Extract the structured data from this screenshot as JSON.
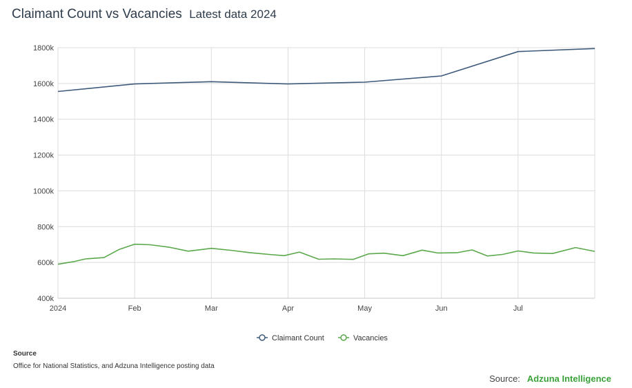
{
  "header": {
    "title": "Claimant Count vs Vacancies",
    "subtitle": "Latest data 2024"
  },
  "chart_data": {
    "type": "line",
    "y_ticks": [
      "400k",
      "600k",
      "800k",
      "1000k",
      "1200k",
      "1400k",
      "1600k",
      "1800k"
    ],
    "ylim": [
      400,
      1800
    ],
    "x_ticks": [
      "2024",
      "Feb",
      "Mar",
      "Apr",
      "May",
      "Jun",
      "Jul"
    ],
    "x_tick_positions": [
      0,
      1,
      2,
      3,
      4,
      5,
      6
    ],
    "xlim": [
      0,
      7
    ],
    "grid": true,
    "legend_position": "bottom-center",
    "series": [
      {
        "name": "Claimant Count",
        "color": "#3d5a7a",
        "x": [
          0,
          1,
          2,
          3,
          4,
          5,
          6,
          7
        ],
        "values": [
          1555,
          1597,
          1610,
          1597,
          1607,
          1642,
          1778,
          1795
        ]
      },
      {
        "name": "Vacancies",
        "color": "#5aa84a",
        "x": [
          0,
          0.2,
          0.36,
          0.6,
          0.8,
          1,
          1.2,
          1.45,
          1.7,
          2,
          2.25,
          2.5,
          2.75,
          2.95,
          3.15,
          3.4,
          3.6,
          3.85,
          4.05,
          4.25,
          4.5,
          4.75,
          4.95,
          5.2,
          5.4,
          5.6,
          5.8,
          6,
          6.2,
          6.45,
          6.75,
          7
        ],
        "values": [
          590,
          604,
          620,
          627,
          673,
          702,
          699,
          685,
          663,
          679,
          668,
          655,
          645,
          638,
          658,
          618,
          620,
          617,
          648,
          652,
          638,
          669,
          653,
          654,
          670,
          636,
          645,
          664,
          653,
          650,
          683,
          662
        ]
      }
    ]
  },
  "source": {
    "heading": "Source",
    "text": "Office for National Statistics, and Adzuna Intelligence posting data"
  },
  "footer": {
    "label": "Source:",
    "brand": "Adzuna Intelligence"
  }
}
